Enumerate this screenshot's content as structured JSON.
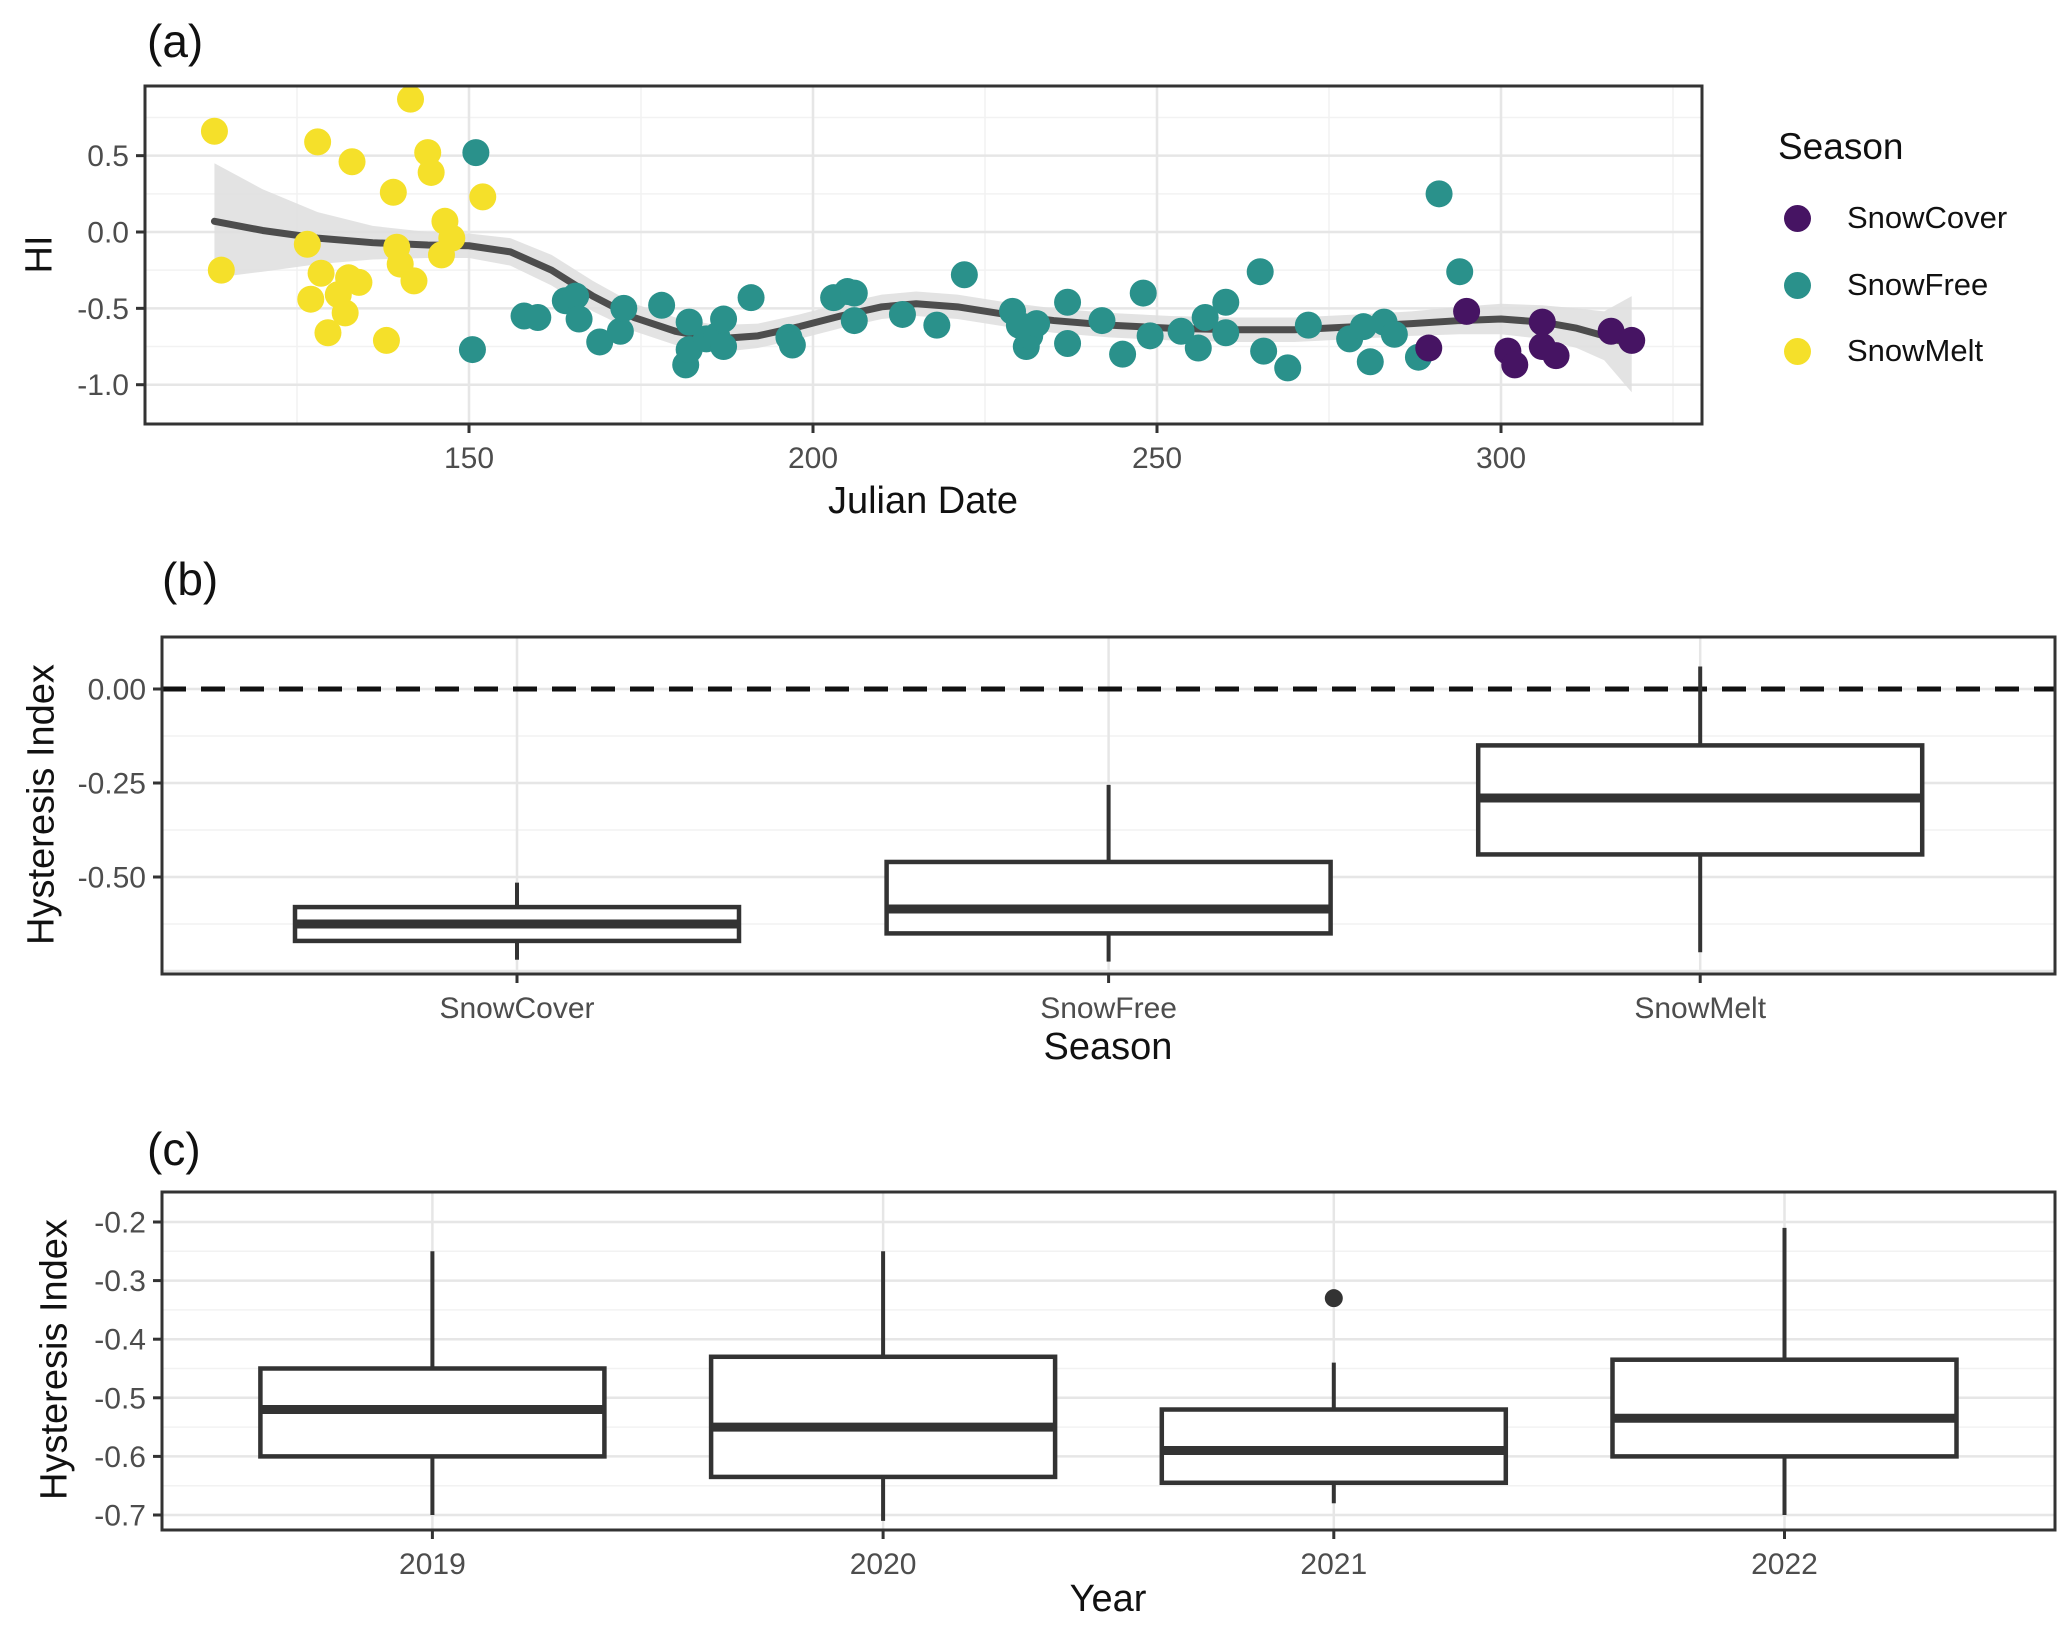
{
  "colors": {
    "snowcover": "#461463",
    "snowfree": "#2A918B",
    "snowmelt": "#F5E02A",
    "smooth_line": "#4D4D4D",
    "ribbon": "#DEDEDE",
    "box_stroke": "#333333",
    "outlier": "#333333",
    "grid_major": "#E6E6E6",
    "grid_minor": "#F2F2F2",
    "panel_border": "#333333",
    "tick_text": "#4D4D4D",
    "dashed_line": "#111111"
  },
  "panel_a": {
    "label": "(a)",
    "x_title": "Julian Date",
    "y_title": "HI",
    "x_tick_labels": [
      "150",
      "200",
      "250",
      "300"
    ],
    "y_tick_labels": [
      "0.5",
      "0.0",
      "-0.5",
      "-1.0"
    ]
  },
  "legend": {
    "title": "Season",
    "items": [
      {
        "label": "SnowCover",
        "color_key": "snowcover"
      },
      {
        "label": "SnowFree",
        "color_key": "snowfree"
      },
      {
        "label": "SnowMelt",
        "color_key": "snowmelt"
      }
    ]
  },
  "panel_b": {
    "label": "(b)",
    "x_title": "Season",
    "y_title": "Hysteresis Index",
    "y_tick_labels": [
      "0.00",
      "-0.25",
      "-0.50"
    ],
    "categories": [
      "SnowCover",
      "SnowFree",
      "SnowMelt"
    ]
  },
  "panel_c": {
    "label": "(c)",
    "x_title": "Year",
    "y_title": "Hysteresis Index",
    "y_tick_labels": [
      "-0.2",
      "-0.3",
      "-0.4",
      "-0.5",
      "-0.6",
      "-0.7"
    ],
    "categories": [
      "2019",
      "2020",
      "2021",
      "2022"
    ]
  },
  "chart_data": [
    {
      "type": "scatter",
      "title": "(a)",
      "xlabel": "Julian Date",
      "ylabel": "HI",
      "xlim": [
        103,
        329
      ],
      "ylim": [
        -1.26,
        0.96
      ],
      "x_ticks": [
        150,
        200,
        250,
        300
      ],
      "x_minor": [
        125,
        175,
        225,
        275,
        325
      ],
      "y_ticks": [
        0.5,
        0.0,
        -0.5,
        -1.0
      ],
      "y_minor": [
        0.75,
        0.25,
        -0.25,
        -0.75
      ],
      "legend_title": "Season",
      "legend_position": "right",
      "grid": true,
      "series": [
        {
          "name": "SnowMelt",
          "color_key": "snowmelt",
          "points": [
            [
              113,
              0.66
            ],
            [
              114,
              -0.25
            ],
            [
              126.5,
              -0.08
            ],
            [
              127,
              -0.44
            ],
            [
              128,
              0.59
            ],
            [
              128.5,
              -0.27
            ],
            [
              129.5,
              -0.66
            ],
            [
              131,
              -0.41
            ],
            [
              132,
              -0.53
            ],
            [
              132.5,
              -0.3
            ],
            [
              133,
              0.46
            ],
            [
              134,
              -0.33
            ],
            [
              138,
              -0.71
            ],
            [
              139,
              0.26
            ],
            [
              139.5,
              -0.1
            ],
            [
              140,
              -0.21
            ],
            [
              141.5,
              0.87
            ],
            [
              142,
              -0.32
            ],
            [
              144,
              0.52
            ],
            [
              144.5,
              0.39
            ],
            [
              146,
              -0.15
            ],
            [
              146.5,
              0.07
            ],
            [
              147.5,
              -0.04
            ],
            [
              152,
              0.23
            ]
          ]
        },
        {
          "name": "SnowFree",
          "color_key": "snowfree",
          "points": [
            [
              150.5,
              -0.77
            ],
            [
              151,
              0.52
            ],
            [
              158,
              -0.55
            ],
            [
              160,
              -0.56
            ],
            [
              164,
              -0.45
            ],
            [
              165.5,
              -0.42
            ],
            [
              166,
              -0.57
            ],
            [
              169,
              -0.72
            ],
            [
              172,
              -0.65
            ],
            [
              172.5,
              -0.5
            ],
            [
              178,
              -0.48
            ],
            [
              181.5,
              -0.87
            ],
            [
              182,
              -0.59
            ],
            [
              182,
              -0.77
            ],
            [
              184.5,
              -0.7
            ],
            [
              186,
              -0.68
            ],
            [
              187,
              -0.75
            ],
            [
              187,
              -0.57
            ],
            [
              191,
              -0.43
            ],
            [
              196.5,
              -0.69
            ],
            [
              197,
              -0.74
            ],
            [
              203,
              -0.43
            ],
            [
              205,
              -0.39
            ],
            [
              206,
              -0.4
            ],
            [
              206,
              -0.58
            ],
            [
              213,
              -0.54
            ],
            [
              218,
              -0.61
            ],
            [
              222,
              -0.28
            ],
            [
              229,
              -0.52
            ],
            [
              230,
              -0.61
            ],
            [
              231,
              -0.75
            ],
            [
              231.5,
              -0.68
            ],
            [
              232.5,
              -0.6
            ],
            [
              237,
              -0.46
            ],
            [
              237,
              -0.73
            ],
            [
              242,
              -0.58
            ],
            [
              245,
              -0.8
            ],
            [
              248,
              -0.4
            ],
            [
              249,
              -0.68
            ],
            [
              253.5,
              -0.65
            ],
            [
              256,
              -0.76
            ],
            [
              257,
              -0.56
            ],
            [
              260,
              -0.46
            ],
            [
              260,
              -0.66
            ],
            [
              265,
              -0.26
            ],
            [
              265.5,
              -0.78
            ],
            [
              269,
              -0.89
            ],
            [
              272,
              -0.61
            ],
            [
              278,
              -0.7
            ],
            [
              280,
              -0.62
            ],
            [
              281,
              -0.85
            ],
            [
              283,
              -0.59
            ],
            [
              284.5,
              -0.67
            ],
            [
              288,
              -0.82
            ],
            [
              291,
              0.25
            ],
            [
              294,
              -0.26
            ]
          ]
        },
        {
          "name": "SnowCover",
          "color_key": "snowcover",
          "points": [
            [
              289.5,
              -0.76
            ],
            [
              295,
              -0.52
            ],
            [
              301,
              -0.78
            ],
            [
              302,
              -0.87
            ],
            [
              306,
              -0.59
            ],
            [
              306,
              -0.75
            ],
            [
              308,
              -0.81
            ],
            [
              316,
              -0.65
            ],
            [
              319,
              -0.71
            ]
          ]
        }
      ],
      "smooth_line": [
        [
          113,
          0.07
        ],
        [
          120,
          0.01
        ],
        [
          128,
          -0.04
        ],
        [
          136,
          -0.07
        ],
        [
          144,
          -0.085
        ],
        [
          150,
          -0.09
        ],
        [
          156,
          -0.13
        ],
        [
          162,
          -0.25
        ],
        [
          168,
          -0.42
        ],
        [
          174,
          -0.56
        ],
        [
          180,
          -0.65
        ],
        [
          186,
          -0.7
        ],
        [
          192,
          -0.68
        ],
        [
          198,
          -0.62
        ],
        [
          204,
          -0.55
        ],
        [
          210,
          -0.49
        ],
        [
          215,
          -0.47
        ],
        [
          221,
          -0.49
        ],
        [
          228,
          -0.54
        ],
        [
          235,
          -0.58
        ],
        [
          243,
          -0.61
        ],
        [
          252,
          -0.63
        ],
        [
          261,
          -0.64
        ],
        [
          270,
          -0.64
        ],
        [
          279,
          -0.62
        ],
        [
          287,
          -0.6
        ],
        [
          294,
          -0.58
        ],
        [
          300,
          -0.57
        ],
        [
          306,
          -0.59
        ],
        [
          311,
          -0.63
        ],
        [
          315,
          -0.68
        ],
        [
          319,
          -0.74
        ]
      ],
      "ribbon": [
        [
          113,
          0.45,
          -0.3
        ],
        [
          120,
          0.28,
          -0.26
        ],
        [
          128,
          0.13,
          -0.21
        ],
        [
          136,
          0.04,
          -0.18
        ],
        [
          144,
          0.0,
          -0.17
        ],
        [
          150,
          -0.01,
          -0.17
        ],
        [
          156,
          -0.04,
          -0.22
        ],
        [
          162,
          -0.15,
          -0.35
        ],
        [
          168,
          -0.32,
          -0.52
        ],
        [
          174,
          -0.47,
          -0.65
        ],
        [
          180,
          -0.56,
          -0.74
        ],
        [
          186,
          -0.61,
          -0.79
        ],
        [
          192,
          -0.6,
          -0.76
        ],
        [
          198,
          -0.54,
          -0.7
        ],
        [
          204,
          -0.47,
          -0.63
        ],
        [
          210,
          -0.41,
          -0.57
        ],
        [
          215,
          -0.39,
          -0.55
        ],
        [
          221,
          -0.41,
          -0.57
        ],
        [
          228,
          -0.46,
          -0.62
        ],
        [
          235,
          -0.5,
          -0.66
        ],
        [
          243,
          -0.53,
          -0.69
        ],
        [
          252,
          -0.55,
          -0.71
        ],
        [
          261,
          -0.56,
          -0.72
        ],
        [
          270,
          -0.56,
          -0.72
        ],
        [
          279,
          -0.54,
          -0.7
        ],
        [
          287,
          -0.52,
          -0.68
        ],
        [
          294,
          -0.49,
          -0.67
        ],
        [
          300,
          -0.47,
          -0.67
        ],
        [
          306,
          -0.48,
          -0.7
        ],
        [
          311,
          -0.5,
          -0.76
        ],
        [
          315,
          -0.52,
          -0.84
        ],
        [
          319,
          -0.42,
          -1.05
        ]
      ]
    },
    {
      "type": "box",
      "title": "(b)",
      "xlabel": "Season",
      "ylabel": "Hysteresis Index",
      "ylim": [
        -0.758,
        0.138
      ],
      "y_ticks": [
        0.0,
        -0.25,
        -0.5
      ],
      "y_minor": [
        -0.125,
        -0.375,
        -0.625
      ],
      "y_extra_major": [
        -0.75
      ],
      "hline_dashed": 0.0,
      "grid": true,
      "categories": [
        "SnowCover",
        "SnowFree",
        "SnowMelt"
      ],
      "boxes": [
        {
          "category": "SnowCover",
          "whisker_low": -0.72,
          "q1": -0.67,
          "median": -0.625,
          "q3": -0.58,
          "whisker_high": -0.515,
          "outliers": []
        },
        {
          "category": "SnowFree",
          "whisker_low": -0.725,
          "q1": -0.65,
          "median": -0.585,
          "q3": -0.46,
          "whisker_high": -0.255,
          "outliers": []
        },
        {
          "category": "SnowMelt",
          "whisker_low": -0.7,
          "q1": -0.44,
          "median": -0.29,
          "q3": -0.15,
          "whisker_high": 0.06,
          "outliers": []
        }
      ]
    },
    {
      "type": "box",
      "title": "(c)",
      "xlabel": "Year",
      "ylabel": "Hysteresis Index",
      "ylim": [
        -0.726,
        -0.148
      ],
      "y_ticks": [
        -0.2,
        -0.3,
        -0.4,
        -0.5,
        -0.6,
        -0.7
      ],
      "y_minor": [
        -0.25,
        -0.35,
        -0.45,
        -0.55,
        -0.65
      ],
      "y_extra_major": [],
      "grid": true,
      "categories": [
        "2019",
        "2020",
        "2021",
        "2022"
      ],
      "boxes": [
        {
          "category": "2019",
          "whisker_low": -0.7,
          "q1": -0.6,
          "median": -0.52,
          "q3": -0.45,
          "whisker_high": -0.25,
          "outliers": []
        },
        {
          "category": "2020",
          "whisker_low": -0.71,
          "q1": -0.635,
          "median": -0.55,
          "q3": -0.43,
          "whisker_high": -0.25,
          "outliers": []
        },
        {
          "category": "2021",
          "whisker_low": -0.68,
          "q1": -0.645,
          "median": -0.59,
          "q3": -0.52,
          "whisker_high": -0.44,
          "outliers": [
            -0.33
          ]
        },
        {
          "category": "2022",
          "whisker_low": -0.7,
          "q1": -0.6,
          "median": -0.535,
          "q3": -0.435,
          "whisker_high": -0.21,
          "outliers": []
        }
      ]
    }
  ]
}
